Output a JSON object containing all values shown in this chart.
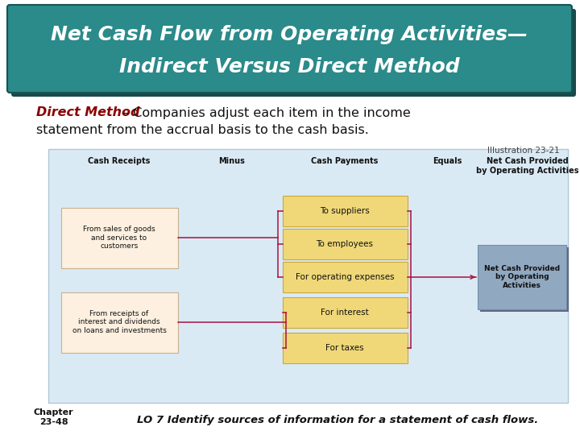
{
  "title_line1": "Net Cash Flow from Operating Activities—",
  "title_line2": "Indirect Versus Direct Method",
  "title_bg_color": "#2B8A8A",
  "title_shadow_color": "#1a4a4a",
  "title_text_color": "#ffffff",
  "subtitle_bold": "Direct Method",
  "subtitle_bold_color": "#8B0000",
  "subtitle_rest": " – Companies adjust each item in the income",
  "subtitle_line2": "statement from the accrual basis to the cash basis.",
  "subtitle_text_color": "#111111",
  "illustration_text": "Illustration 23-21",
  "diagram_bg": "#daeaf5",
  "diagram_border": "#aec8d8",
  "col_headers": [
    "Cash Receipts",
    "Minus",
    "Cash Payments",
    "Equals",
    "Net Cash Provided\nby Operating Activities"
  ],
  "left_box1_text": "From sales of goods\nand services to\ncustomers",
  "left_box2_text": "From receipts of\ninterest and dividends\non loans and investments",
  "center_boxes": [
    "To suppliers",
    "To employees",
    "For operating expenses",
    "For interest",
    "For taxes"
  ],
  "result_box_text": "Net Cash Provided\nby Operating\nActivities",
  "left_box_color": "#fdf0e0",
  "left_box_border": "#c8b090",
  "center_box_color": "#f0d878",
  "center_box_border": "#c8a840",
  "result_box_color": "#90a8c0",
  "result_box_border": "#7090a8",
  "arrow_color": "#aa1040",
  "chapter_text": "Chapter\n23-48",
  "footer_text": "LO 7 Identify sources of information for a statement of cash flows."
}
